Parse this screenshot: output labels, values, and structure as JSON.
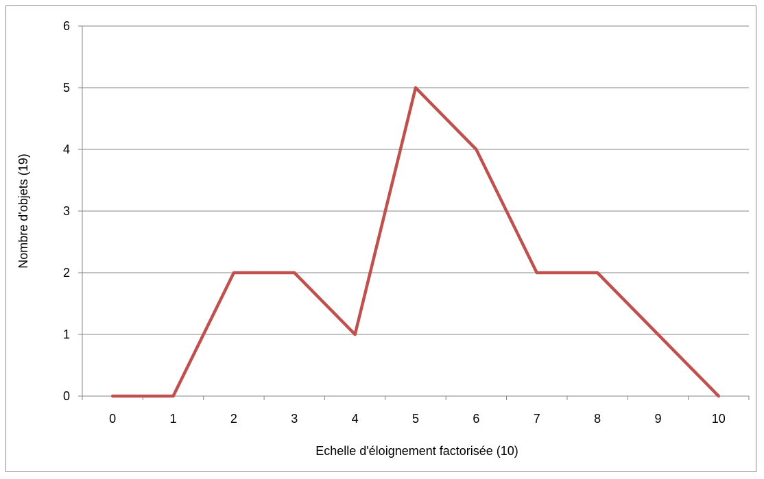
{
  "chart_data": {
    "type": "line",
    "title": "",
    "xlabel": "Echelle d'éloignement factorisée (10)",
    "ylabel": "Nombre d'objets (19)",
    "categories": [
      "0",
      "1",
      "2",
      "3",
      "4",
      "5",
      "6",
      "7",
      "8",
      "9",
      "10"
    ],
    "series": [
      {
        "values": [
          0,
          0,
          2,
          2,
          1,
          5,
          4,
          2,
          2,
          1,
          0
        ],
        "color": "#c0504d"
      }
    ],
    "ylim": [
      0,
      6
    ],
    "yticks": [
      "0",
      "1",
      "2",
      "3",
      "4",
      "5",
      "6"
    ],
    "grid": "horizontal",
    "legend": "none",
    "colors": {
      "gridline": "#868686",
      "axis": "#868686",
      "border": "#868686"
    }
  }
}
